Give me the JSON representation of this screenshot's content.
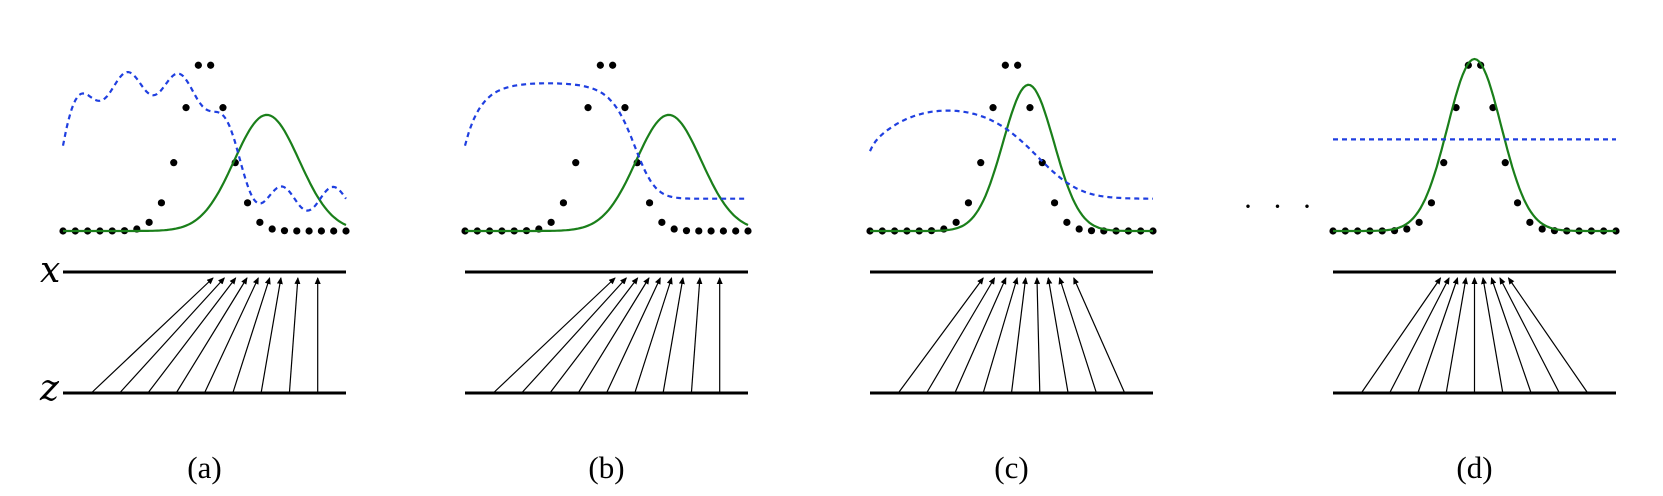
{
  "axis_labels": {
    "x": "x",
    "z": "z"
  },
  "ellipsis": "· · ·",
  "panels": [
    {
      "label": "(a)",
      "gen_mean": 0.72,
      "gen_sigma": 0.115,
      "gen_height": 0.54,
      "disc": {
        "kind": "wavy",
        "amplitude": 0.1
      },
      "z_sources": [
        0.1,
        0.2,
        0.3,
        0.4,
        0.5,
        0.6,
        0.7,
        0.8,
        0.9
      ],
      "x_targets": [
        0.53,
        0.57,
        0.61,
        0.65,
        0.69,
        0.73,
        0.77,
        0.83,
        0.9
      ]
    },
    {
      "label": "(b)",
      "gen_mean": 0.72,
      "gen_sigma": 0.115,
      "gen_height": 0.54,
      "disc": {
        "kind": "smooth"
      },
      "z_sources": [
        0.1,
        0.2,
        0.3,
        0.4,
        0.5,
        0.6,
        0.7,
        0.8,
        0.9
      ],
      "x_targets": [
        0.53,
        0.57,
        0.61,
        0.65,
        0.69,
        0.73,
        0.77,
        0.83,
        0.9
      ]
    },
    {
      "label": "(c)",
      "gen_mean": 0.56,
      "gen_sigma": 0.09,
      "gen_height": 0.68,
      "disc": {
        "kind": "smooth"
      },
      "z_sources": [
        0.1,
        0.2,
        0.3,
        0.4,
        0.5,
        0.6,
        0.7,
        0.8,
        0.9
      ],
      "x_targets": [
        0.4,
        0.44,
        0.48,
        0.52,
        0.55,
        0.59,
        0.63,
        0.67,
        0.72
      ]
    },
    {
      "label": "(d)",
      "gen_mean": 0.5,
      "gen_sigma": 0.095,
      "gen_height": 0.8,
      "disc": {
        "kind": "flat",
        "level": 0.5
      },
      "z_sources": [
        0.1,
        0.2,
        0.3,
        0.4,
        0.5,
        0.6,
        0.7,
        0.8,
        0.9
      ],
      "x_targets": [
        0.38,
        0.41,
        0.44,
        0.47,
        0.5,
        0.53,
        0.56,
        0.59,
        0.62
      ]
    }
  ],
  "data_distribution": {
    "mean": 0.5,
    "sigma": 0.08,
    "height": 0.8,
    "dot_count": 24
  },
  "colors": {
    "data": "#000000",
    "generator": "#1a7f1a",
    "discriminator": "#1f3fe0",
    "mapping": "#000000"
  }
}
